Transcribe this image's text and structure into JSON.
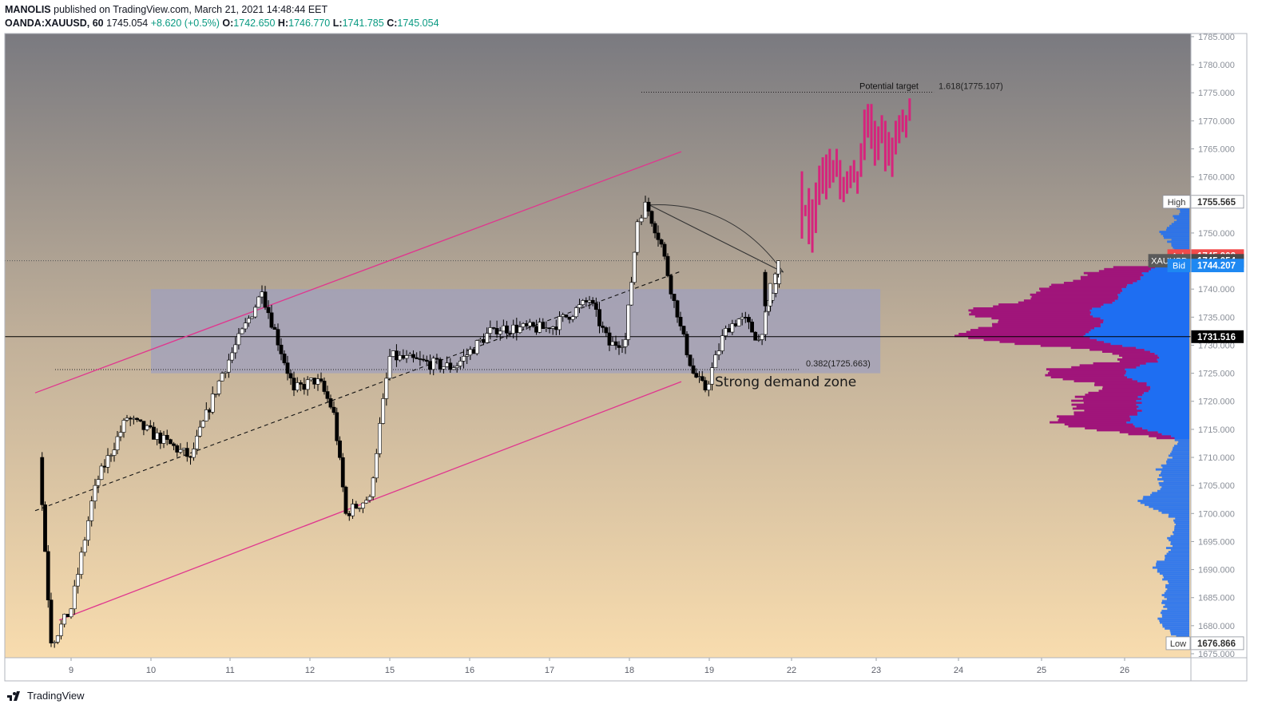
{
  "header": {
    "author": "MANOLIS",
    "published": " published on TradingView.com, March 21, 2021 14:48:44 EET",
    "symbol": "OANDA:XAUUSD, 60",
    "last": "1745.054",
    "change": "+8.620 (+0.5%)",
    "o_label": "O:",
    "o": "1742.650",
    "h_label": "H:",
    "h": "1746.770",
    "l_label": "L:",
    "l": "1741.785",
    "c_label": "C:",
    "c": "1745.054"
  },
  "footer": {
    "brand": "TradingView"
  },
  "colors": {
    "bull": "#ffffff",
    "bear": "#000000",
    "channel": "#e0368e",
    "projection": "#d6247c",
    "zone": "#9e9fbf",
    "profile_up": "#1e6ef2",
    "profile_down": "#a0157a",
    "ask": "#f24a4a",
    "bid": "#1e88f2",
    "price_tag": "#4a4a4a",
    "high_low_tag": "#ffffff"
  },
  "chart_data": {
    "type": "candlestick",
    "ylim": [
      1675,
      1785
    ],
    "y_ticks": [
      1675,
      1680,
      1685,
      1690,
      1695,
      1700,
      1705,
      1710,
      1715,
      1720,
      1725,
      1730,
      1735,
      1740,
      1745,
      1750,
      1755,
      1760,
      1765,
      1770,
      1775,
      1780,
      1785
    ],
    "x_ticks": [
      "9",
      "10",
      "11",
      "12",
      "15",
      "16",
      "17",
      "18",
      "19",
      "22",
      "23",
      "24",
      "25",
      "26"
    ],
    "anchors": [
      [
        "8.6",
        1710
      ],
      [
        "8.75",
        1676.9
      ],
      [
        "9.0",
        1683
      ],
      [
        "9.3",
        1705
      ],
      [
        "9.7",
        1717
      ],
      [
        "10.5",
        1710
      ],
      [
        "10.9",
        1725
      ],
      [
        "11.4",
        1739.5
      ],
      [
        "11.8",
        1722
      ],
      [
        "12.1",
        1724
      ],
      [
        "12.3",
        1718
      ],
      [
        "12.45",
        1700
      ],
      [
        "12.75",
        1703
      ],
      [
        "15.0",
        1728
      ],
      [
        "15.8",
        1726
      ],
      [
        "16.3",
        1733
      ],
      [
        "17.0",
        1733
      ],
      [
        "17.5",
        1738
      ],
      [
        "17.75",
        1730
      ],
      [
        "17.95",
        1731
      ],
      [
        "18.1",
        1752
      ],
      [
        "18.2",
        1755.5
      ],
      [
        "18.4",
        1748
      ],
      [
        "18.6",
        1735
      ],
      [
        "18.8",
        1725
      ],
      [
        "18.95",
        1722
      ],
      [
        "19.2",
        1733
      ],
      [
        "19.4",
        1735
      ],
      [
        "19.6",
        1731
      ],
      [
        "19.85",
        1743
      ],
      [
        "20.2",
        1737
      ],
      [
        "20.35",
        1741
      ],
      [
        "20.5",
        1742.7
      ],
      [
        "20.6",
        1745.05
      ]
    ],
    "projection_bars": [
      [
        1749,
        1761
      ],
      [
        1753,
        1755
      ],
      [
        1748,
        1758
      ],
      [
        1746.5,
        1756
      ],
      [
        1750,
        1759
      ],
      [
        1755,
        1762
      ],
      [
        1757,
        1763.5
      ],
      [
        1756,
        1764
      ],
      [
        1758,
        1765
      ],
      [
        1759,
        1763
      ],
      [
        1760,
        1765
      ],
      [
        1756,
        1763
      ],
      [
        1755.5,
        1760
      ],
      [
        1757,
        1761
      ],
      [
        1758,
        1762
      ],
      [
        1759,
        1763
      ],
      [
        1757,
        1761
      ],
      [
        1760,
        1766
      ],
      [
        1763,
        1772
      ],
      [
        1767,
        1773
      ],
      [
        1765,
        1773
      ],
      [
        1762,
        1770
      ],
      [
        1763,
        1769
      ],
      [
        1766,
        1771
      ],
      [
        1761,
        1770
      ],
      [
        1762,
        1768
      ],
      [
        1760,
        1767
      ],
      [
        1764,
        1770
      ],
      [
        1766,
        1771
      ],
      [
        1768,
        1772
      ],
      [
        1767,
        1771
      ],
      [
        1770,
        1774
      ]
    ],
    "channel_upper": [
      [
        "8.55",
        1721.5
      ],
      [
        "18.65",
        1764.5
      ]
    ],
    "channel_lower": [
      [
        "8.85",
        1681
      ],
      [
        "18.65",
        1723.5
      ]
    ],
    "midline": [
      [
        "8.55",
        1700.5
      ],
      [
        "18.65",
        1743.2
      ]
    ],
    "trend_line": [
      [
        "18.25",
        1755
      ],
      [
        "19.9",
        1743
      ]
    ],
    "demand_zone": {
      "from": "10.0",
      "to": "23.05",
      "y1": 1725,
      "y2": 1740,
      "label": "Strong demand zone"
    },
    "fib_levels": [
      {
        "label": "0.382(1725.663)",
        "value": 1725.663,
        "from": "8.8",
        "to": "22.1"
      },
      {
        "label": "1.618(1775.107)",
        "value": 1775.107,
        "from": "18.15",
        "to": "23.7",
        "note": "Potential target"
      }
    ],
    "horizontal_line": 1731.516,
    "price_tags": {
      "high": {
        "label": "High",
        "value": "1755.565",
        "price": 1755.565
      },
      "ask": {
        "label": "Ask",
        "value": "1745.902",
        "price": 1745.902
      },
      "last": {
        "label": "XAUUSD",
        "value": "1745.054",
        "price": 1745.054
      },
      "bid": {
        "label": "Bid",
        "value": "1744.207",
        "price": 1744.207
      },
      "line": {
        "value": "1731.516",
        "price": 1731.516
      },
      "low": {
        "label": "Low",
        "value": "1676.866",
        "price": 1676.866
      }
    },
    "volume_profile": {
      "range": [
        1676.9,
        1755.6
      ],
      "poc": 1731.5,
      "value_area": [
        1713,
        1744
      ]
    }
  }
}
